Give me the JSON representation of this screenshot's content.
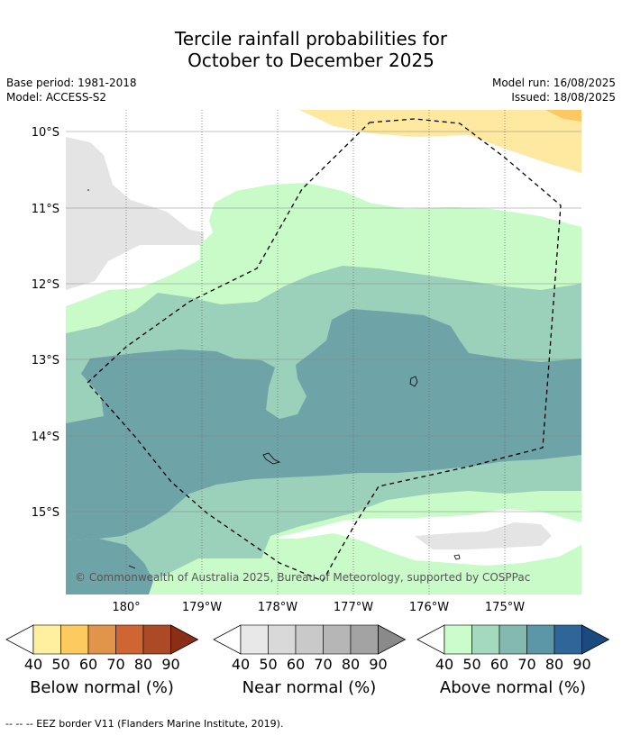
{
  "title_line1": "Tercile rainfall probabilities for",
  "title_line2": "October to December 2025",
  "base_period": "Base period: 1981-2018",
  "model": "Model: ACCESS-S2",
  "model_run": "Model run: 16/08/2025",
  "issued": "Issued: 18/08/2025",
  "lat_labels": [
    "10°S",
    "11°S",
    "12°S",
    "13°S",
    "14°S",
    "15°S"
  ],
  "lon_labels": [
    "180°",
    "179°W",
    "178°W",
    "177°W",
    "176°W",
    "175°W"
  ],
  "copyright": "© Commonwealth of Australia 2025, Bureau of Meteorology, supported by COSPPac",
  "colorbars": [
    {
      "label": "Below normal (%)",
      "ticks": [
        "40",
        "50",
        "60",
        "70",
        "80",
        "90"
      ],
      "colors": [
        "#fff0a0",
        "#fdca60",
        "#e0954a",
        "#cf6532",
        "#ab4a25",
        "#8b2e16"
      ]
    },
    {
      "label": "Near normal (%)",
      "ticks": [
        "40",
        "50",
        "60",
        "70",
        "80",
        "90"
      ],
      "colors": [
        "#e8e8e8",
        "#d9d9d9",
        "#c9c9c9",
        "#b6b6b6",
        "#a3a3a3",
        "#8a8a8a"
      ]
    },
    {
      "label": "Above normal (%)",
      "ticks": [
        "40",
        "50",
        "60",
        "70",
        "80",
        "90"
      ],
      "colors": [
        "#cbfccb",
        "#a4d9bd",
        "#84b9b0",
        "#5c97a8",
        "#2f6699",
        "#1b4a7e"
      ]
    }
  ],
  "map_colors": {
    "above_40": "#c9fbc9",
    "above_50": "#9bd1bb",
    "above_60": "#6ea3a8",
    "near_40": "#e4e4e4",
    "below_40": "#ffe9a0",
    "below_50": "#fdc764"
  },
  "footer": "--  --  -- EEZ border V11 (Flanders Marine Institute, 2019)."
}
